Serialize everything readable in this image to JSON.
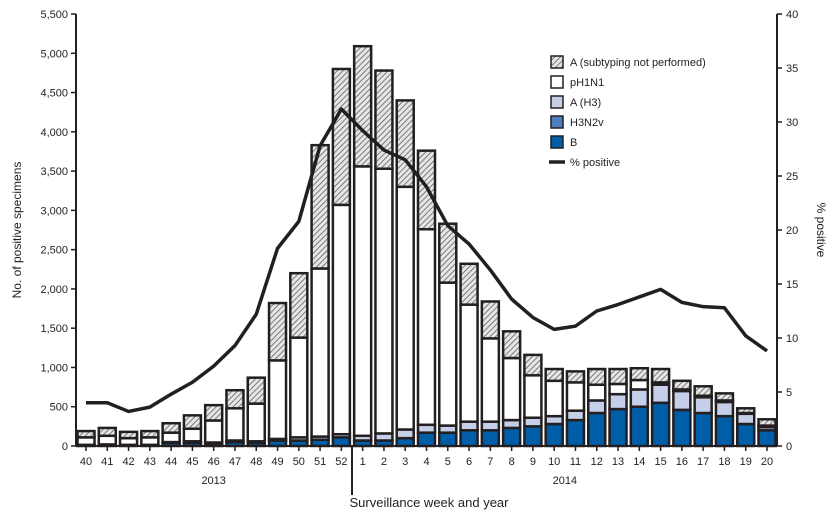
{
  "chart_data": {
    "type": "bar",
    "stacked": true,
    "xlabel": "Surveillance week and year",
    "ylabel": "No. of positive specimens",
    "y2label": "% positive",
    "ylim": [
      0,
      5500
    ],
    "y2lim": [
      0,
      40
    ],
    "yticks": [
      "0",
      "500",
      "1,000",
      "1,500",
      "2,000",
      "2,500",
      "3,000",
      "3,500",
      "4,000",
      "4,500",
      "5,000",
      "5,500"
    ],
    "y2ticks": [
      "0",
      "5",
      "10",
      "15",
      "20",
      "25",
      "30",
      "35",
      "40"
    ],
    "categories": [
      "40",
      "41",
      "42",
      "43",
      "44",
      "45",
      "46",
      "47",
      "48",
      "49",
      "50",
      "51",
      "52",
      "1",
      "2",
      "3",
      "4",
      "5",
      "6",
      "7",
      "8",
      "9",
      "10",
      "11",
      "12",
      "13",
      "14",
      "15",
      "16",
      "17",
      "18",
      "19",
      "20"
    ],
    "year_labels": [
      {
        "label": "2013",
        "from": "40",
        "to": "52"
      },
      {
        "label": "2014",
        "from": "1",
        "to": "20"
      }
    ],
    "legend_position": "top-right",
    "series": [
      {
        "name": "B",
        "color": "#005ea8",
        "values": [
          10,
          15,
          10,
          10,
          40,
          40,
          30,
          50,
          40,
          70,
          70,
          80,
          110,
          70,
          70,
          100,
          170,
          170,
          200,
          200,
          230,
          250,
          280,
          330,
          420,
          470,
          500,
          550,
          460,
          420,
          380,
          280,
          200
        ]
      },
      {
        "name": "H3N2v",
        "color": "#4f7fc0",
        "values": [
          0,
          0,
          0,
          0,
          0,
          0,
          0,
          0,
          0,
          0,
          0,
          0,
          0,
          0,
          0,
          0,
          0,
          0,
          0,
          0,
          0,
          0,
          0,
          0,
          0,
          0,
          0,
          0,
          0,
          0,
          0,
          0,
          0
        ]
      },
      {
        "name": "A (H3)",
        "color": "#c5d0e8",
        "values": [
          5,
          5,
          5,
          5,
          10,
          20,
          15,
          20,
          20,
          20,
          40,
          40,
          40,
          60,
          90,
          110,
          100,
          90,
          110,
          110,
          100,
          110,
          100,
          120,
          160,
          190,
          220,
          230,
          240,
          200,
          180,
          130,
          40
        ]
      },
      {
        "name": "pH1N1",
        "color": "#ffffff",
        "values": [
          95,
          110,
          85,
          95,
          120,
          160,
          280,
          410,
          480,
          1000,
          1270,
          2140,
          2920,
          3430,
          3370,
          3090,
          2490,
          1820,
          1490,
          1060,
          790,
          540,
          450,
          360,
          200,
          130,
          120,
          30,
          20,
          20,
          20,
          10,
          20
        ]
      },
      {
        "name": "A (subtyping not performed)",
        "color": "hatch",
        "values": [
          80,
          100,
          80,
          80,
          120,
          170,
          195,
          230,
          330,
          730,
          820,
          1570,
          1730,
          1530,
          1250,
          1100,
          1000,
          750,
          520,
          470,
          340,
          260,
          150,
          140,
          200,
          190,
          150,
          170,
          110,
          120,
          90,
          60,
          80
        ]
      }
    ],
    "line": {
      "name": "% positive",
      "color": "#231f20",
      "axis": "right",
      "values": [
        4.0,
        4.0,
        3.2,
        3.6,
        4.8,
        5.9,
        7.4,
        9.3,
        12.2,
        18.3,
        20.8,
        27.8,
        31.2,
        29.2,
        27.4,
        26.5,
        24.0,
        20.4,
        18.7,
        16.3,
        13.6,
        11.9,
        10.8,
        11.1,
        12.5,
        13.1,
        13.8,
        14.5,
        13.3,
        12.9,
        12.8,
        10.2,
        8.8
      ]
    },
    "grid": false
  }
}
